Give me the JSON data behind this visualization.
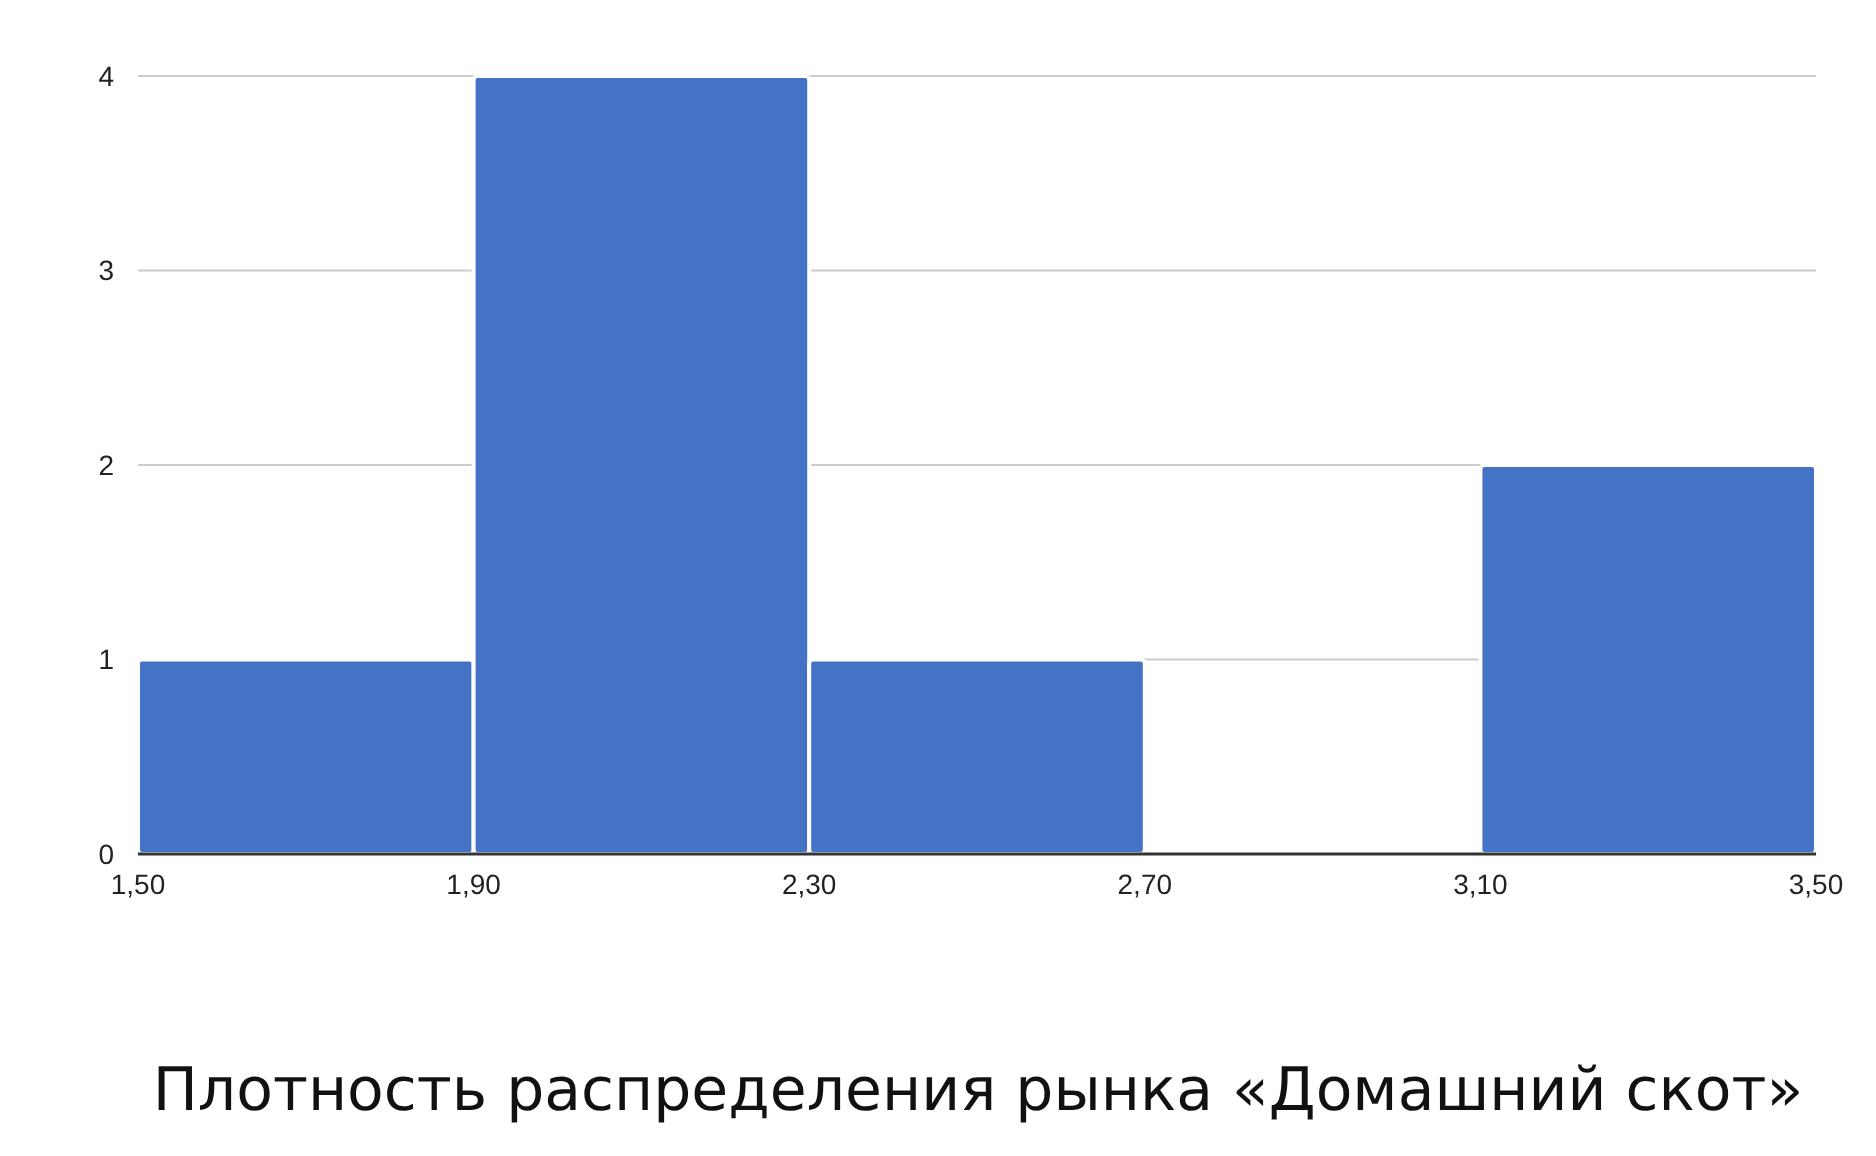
{
  "chart_data": {
    "type": "histogram",
    "title": "Плотность распределения рынка «Домашний скот»",
    "bins": [
      1.5,
      1.9,
      2.3,
      2.7,
      3.1,
      3.5
    ],
    "values": [
      1,
      4,
      1,
      0,
      2
    ],
    "color": "#4472c4",
    "xlim": [
      1.5,
      3.5
    ],
    "xticks": [
      {
        "value": 1.5,
        "label": "1,50"
      },
      {
        "value": 1.9,
        "label": "1,90"
      },
      {
        "value": 2.3,
        "label": "2,30"
      },
      {
        "value": 2.7,
        "label": "2,70"
      },
      {
        "value": 3.1,
        "label": "3,10"
      },
      {
        "value": 3.5,
        "label": "3,50"
      }
    ],
    "ylim": [
      0,
      4
    ],
    "yticks": [
      0,
      1,
      2,
      3,
      4
    ],
    "grid": "y"
  }
}
